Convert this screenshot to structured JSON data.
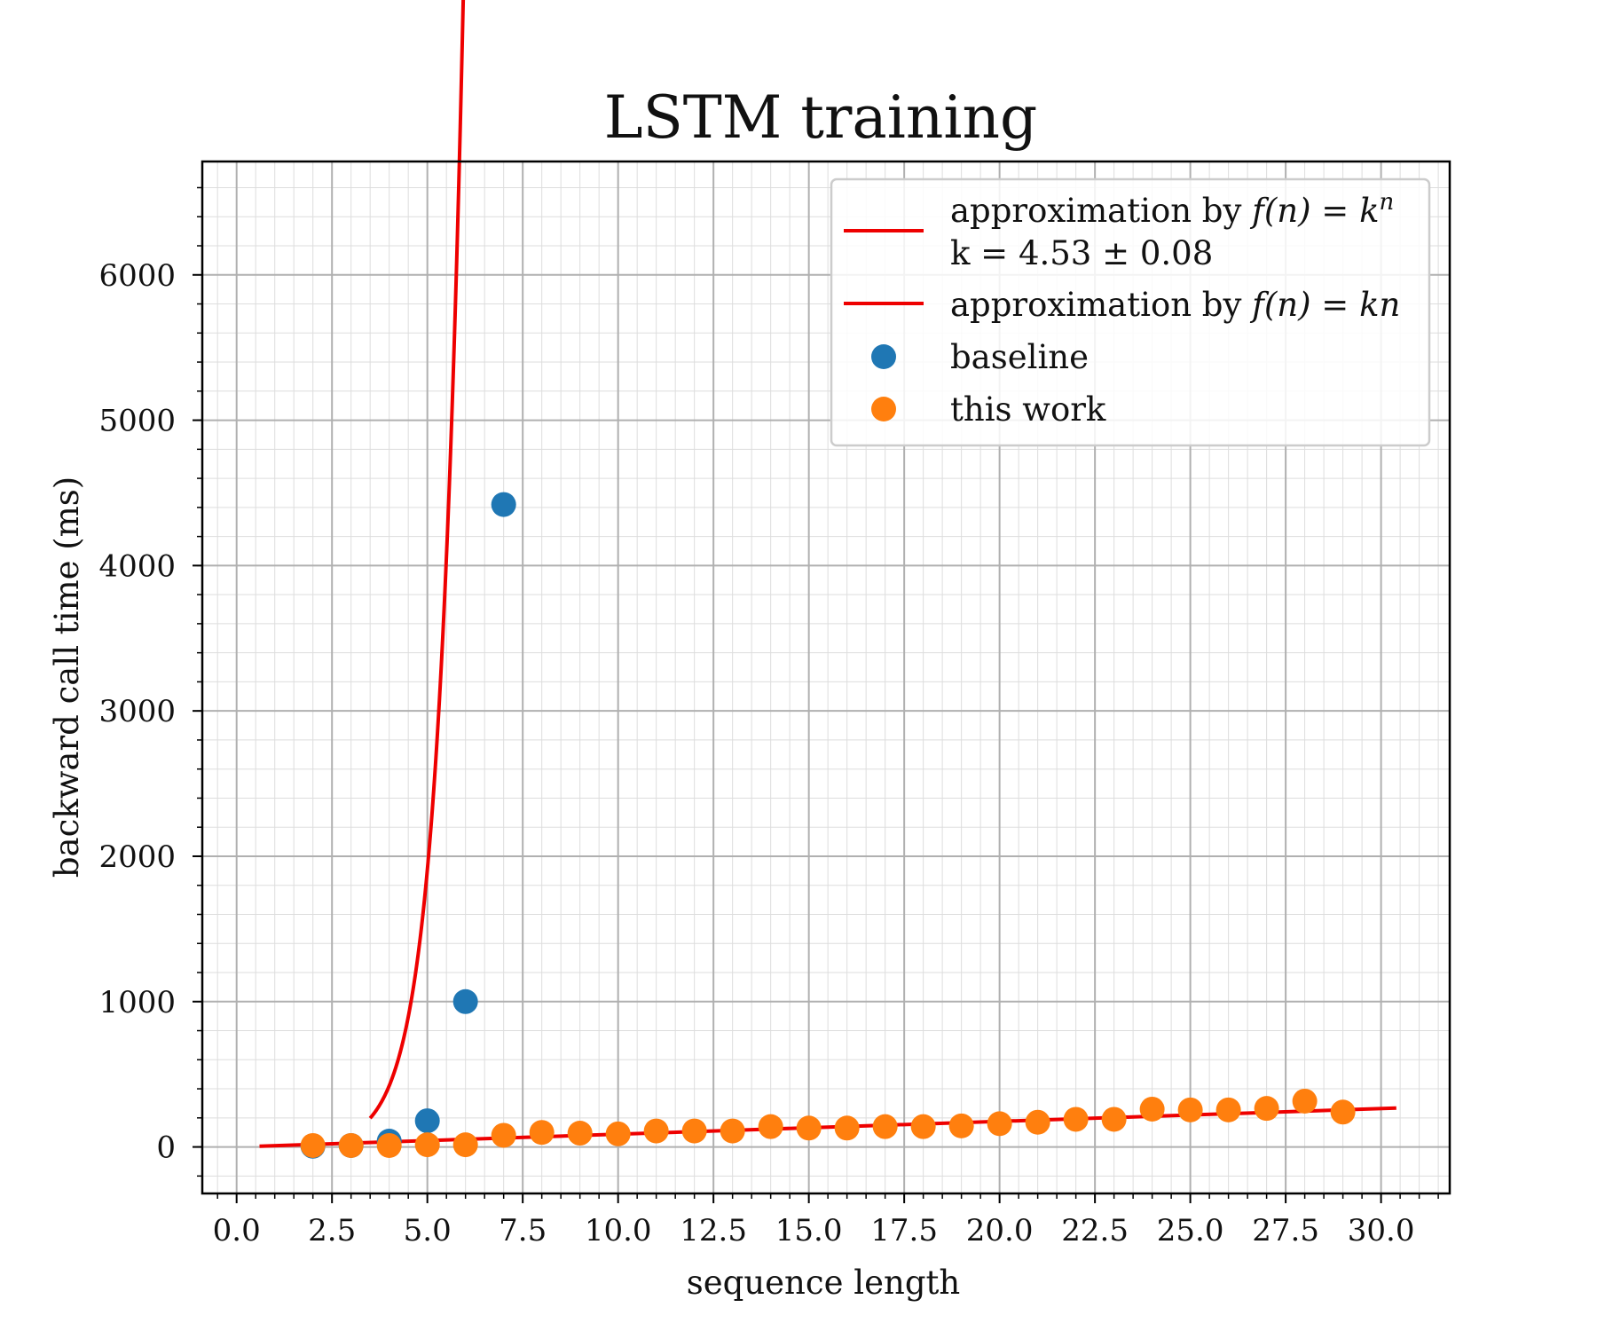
{
  "chart_data": {
    "type": "scatter",
    "title": "LSTM training",
    "xlabel": "sequence length",
    "ylabel": "backward call time (ms)",
    "xlim": [
      -0.9,
      31.8
    ],
    "ylim": [
      -320,
      6780
    ],
    "x_ticks": [
      "0.0",
      "2.5",
      "5.0",
      "7.5",
      "10.0",
      "12.5",
      "15.0",
      "17.5",
      "20.0",
      "22.5",
      "25.0",
      "27.5",
      "30.0"
    ],
    "y_ticks": [
      "0",
      "1000",
      "2000",
      "3000",
      "4000",
      "5000",
      "6000"
    ],
    "grid": true,
    "minor_grid": true,
    "legend_position": "top-right",
    "legend": {
      "exp_line_prefix": "approximation by ",
      "exp_line_formula": "f(n) = k",
      "exp_line_superscript": "n",
      "exp_line_k": "k = 4.53 ± 0.08",
      "lin_line_prefix": "approximation by ",
      "lin_line_formula": "f(n) = kn",
      "baseline": "baseline",
      "this_work": "this work"
    },
    "colors": {
      "fit": "#ee0000",
      "baseline": "#1f77b4",
      "this_work": "#ff7f0e",
      "grid_major": "#b0b0b0",
      "grid_minor": "#dddddd"
    },
    "series": [
      {
        "name": "baseline",
        "x": [
          2,
          3,
          4,
          5,
          6,
          7
        ],
        "y": [
          5,
          10,
          40,
          180,
          1000,
          4420
        ]
      },
      {
        "name": "this work",
        "x": [
          2,
          3,
          4,
          5,
          6,
          7,
          8,
          9,
          10,
          11,
          12,
          13,
          14,
          15,
          16,
          17,
          18,
          19,
          20,
          21,
          22,
          23,
          24,
          25,
          26,
          27,
          28,
          29
        ],
        "y": [
          10,
          10,
          10,
          15,
          15,
          80,
          100,
          95,
          90,
          110,
          110,
          110,
          140,
          130,
          130,
          140,
          140,
          145,
          160,
          170,
          190,
          190,
          260,
          255,
          255,
          265,
          315,
          240
        ]
      }
    ],
    "fits": [
      {
        "name": "approximation by f(n) = k^n",
        "k": 4.53,
        "x_range": [
          3.5,
          7.25
        ]
      },
      {
        "name": "approximation by f(n) = kn",
        "k": 8.8,
        "x_range": [
          0.6,
          30.4
        ]
      }
    ]
  }
}
